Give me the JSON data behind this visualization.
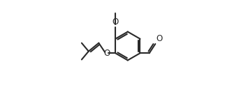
{
  "bg_color": "#ffffff",
  "line_color": "#2a2a2a",
  "line_width": 1.5,
  "figsize": [
    3.22,
    1.32
  ],
  "dpi": 100,
  "xlim": [
    0.0,
    1.0
  ],
  "ylim": [
    0.0,
    1.0
  ]
}
